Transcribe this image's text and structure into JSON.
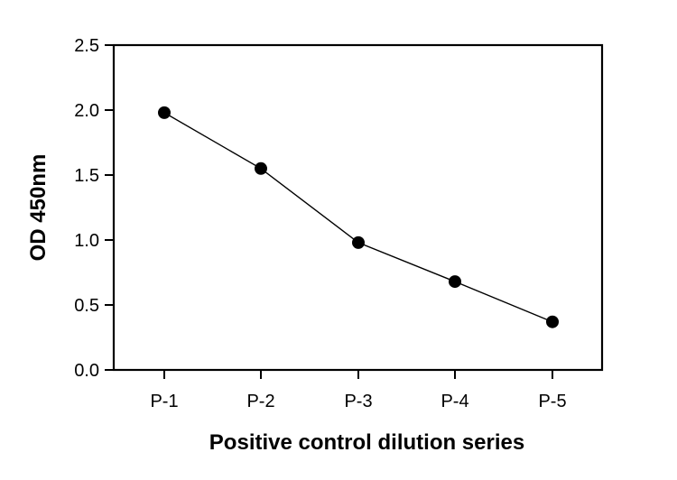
{
  "chart_data": {
    "type": "line",
    "title": "",
    "xlabel": "Positive control dilution series",
    "ylabel": "OD 450nm",
    "categories": [
      "P-1",
      "P-2",
      "P-3",
      "P-4",
      "P-5"
    ],
    "series": [
      {
        "values": [
          1.98,
          1.55,
          0.98,
          0.68,
          0.37
        ]
      }
    ],
    "ylim": [
      0,
      2.5
    ],
    "yticks": [
      0.0,
      0.5,
      1.0,
      1.5,
      2.0,
      2.5
    ],
    "ytick_labels": [
      "0.0",
      "0.5",
      "1.0",
      "1.5",
      "2.0",
      "2.5"
    ],
    "grid": false,
    "legend": "none",
    "marker": "circle",
    "colors": {
      "series": "#000000",
      "axes": "#000000"
    }
  }
}
